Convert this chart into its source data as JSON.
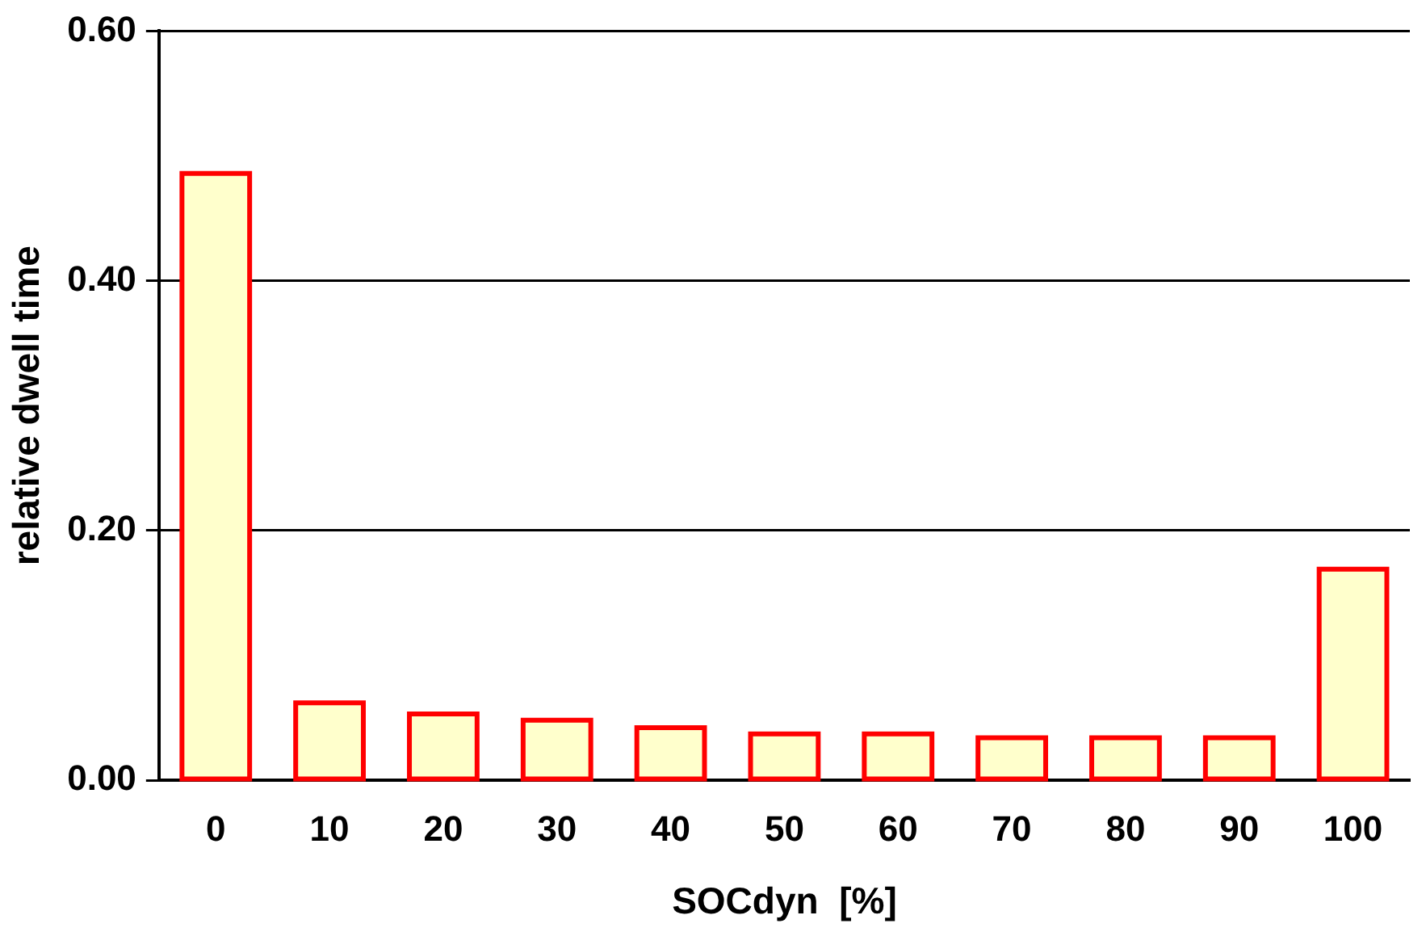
{
  "chart_data": {
    "type": "bar",
    "xlabel": "SOCdyn  [%]",
    "ylabel": "relative dwell time",
    "categories": [
      "0",
      "10",
      "20",
      "30",
      "40",
      "50",
      "60",
      "70",
      "80",
      "90",
      "100"
    ],
    "series": [
      {
        "color": "#ffffcc",
        "values": [
          0.486,
          0.062,
          0.053,
          0.048,
          0.042,
          0.037,
          0.037,
          0.034,
          0.034,
          0.034,
          0.169
        ]
      }
    ],
    "ylim": [
      0,
      0.6
    ],
    "yticks": [
      {
        "value": 0,
        "label": "0.00"
      },
      {
        "value": 0.2,
        "label": "0.20"
      },
      {
        "value": 0.4,
        "label": "0.40"
      },
      {
        "value": 0.6,
        "label": "0.60"
      }
    ],
    "grid": "y",
    "legend": false
  }
}
